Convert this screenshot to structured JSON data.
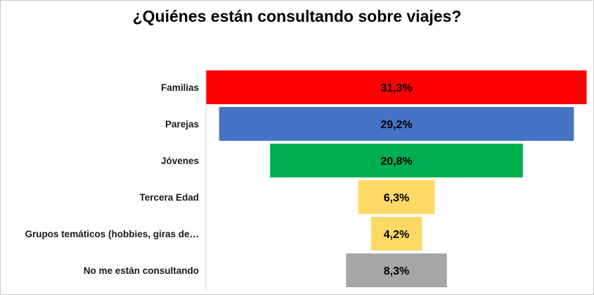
{
  "chart_data": {
    "type": "bar",
    "subtype": "funnel",
    "title": "¿Quiénes están consultando sobre viajes?",
    "categories": [
      "Familias",
      "Parejas",
      "Jóvenes",
      "Tercera Edad",
      "Grupos temáticos (hobbies, giras de…",
      "No me están consultando"
    ],
    "values": [
      31.3,
      29.2,
      20.8,
      6.3,
      4.2,
      8.3
    ],
    "value_labels": [
      "31,3%",
      "29,2%",
      "20,8%",
      "6,3%",
      "4,2%",
      "8,3%"
    ],
    "colors": [
      "#ff0000",
      "#4472c4",
      "#00b050",
      "#ffd966",
      "#ffd966",
      "#a6a6a6"
    ],
    "unit": "%",
    "grid": false,
    "legend": "none"
  }
}
